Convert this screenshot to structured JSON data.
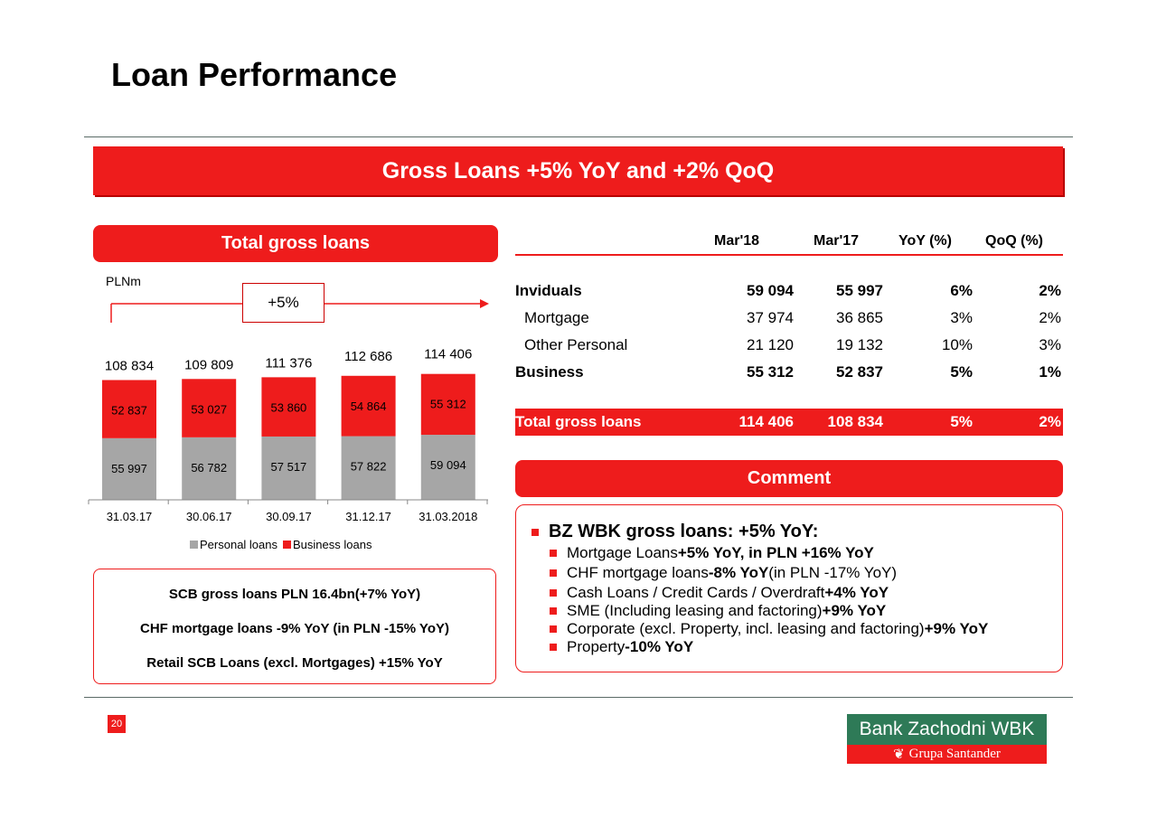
{
  "page_title": "Loan Performance",
  "banner": "Gross Loans +5% YoY and +2% QoQ",
  "left_panel": {
    "header": "Total gross loans",
    "unit": "PLNm",
    "growth_label": "+5%",
    "legend": [
      "Personal loans",
      "Business loans"
    ]
  },
  "chart_data": {
    "type": "bar",
    "stacked": true,
    "categories": [
      "31.03.17",
      "30.06.17",
      "30.09.17",
      "31.12.17",
      "31.03.2018"
    ],
    "series": [
      {
        "name": "Personal loans",
        "color": "#a6a6a6",
        "values": [
          55997,
          56782,
          57517,
          57822,
          59094
        ],
        "labels": [
          "55 997",
          "56 782",
          "57 517",
          "57 822",
          "59 094"
        ]
      },
      {
        "name": "Business loans",
        "color": "#ee1c1c",
        "values": [
          52837,
          53027,
          53860,
          54864,
          55312
        ],
        "labels": [
          "52 837",
          "53 027",
          "53 860",
          "54 864",
          "55 312"
        ]
      }
    ],
    "totals": [
      "108 834",
      "109 809",
      "111 376",
      "112 686",
      "114 406"
    ],
    "ylim": [
      0,
      115000
    ],
    "legend_position": "bottom",
    "grid": false
  },
  "info_box": {
    "line1": "SCB gross loans PLN 16.4bn(+7% YoY)",
    "line2": "CHF mortgage loans  -9% YoY (in PLN -15% YoY)",
    "line3": "Retail SCB Loans (excl. Mortgages) +15% YoY"
  },
  "table": {
    "columns": [
      "Mar'18",
      "Mar'17",
      "YoY (%)",
      "QoQ (%)"
    ],
    "rows": [
      {
        "label": "Inviduals",
        "values": [
          "59 094",
          "55 997",
          "6%",
          "2%"
        ]
      },
      {
        "label": "Mortgage",
        "values": [
          "37 974",
          "36 865",
          "3%",
          "2%"
        ]
      },
      {
        "label": "Other Personal",
        "values": [
          "21 120",
          "19 132",
          "10%",
          "3%"
        ]
      },
      {
        "label": "Business",
        "values": [
          "55 312",
          "52 837",
          "5%",
          "1%"
        ]
      },
      {
        "label": "Total gross loans",
        "values": [
          "114 406",
          "108 834",
          "5%",
          "2%"
        ]
      }
    ]
  },
  "comment": {
    "header": "Comment",
    "main": "BZ WBK gross loans:  +5% YoY:",
    "items": [
      {
        "pre": "Mortgage Loans ",
        "bold": "+5% YoY, in PLN +16% YoY",
        "post": ""
      },
      {
        "pre": "CHF mortgage loans ",
        "bold": "-8% YoY",
        "post": " (in PLN -17% YoY)"
      },
      {
        "pre": "Cash Loans / Credit Cards / Overdraft ",
        "bold": "+4% YoY",
        "post": ""
      },
      {
        "pre": "SME (Including leasing and factoring) ",
        "bold": "+9% YoY",
        "post": ""
      },
      {
        "pre": "Corporate (excl. Property, incl. leasing and factoring) ",
        "bold": "+9% YoY",
        "post": ""
      },
      {
        "pre": "Property ",
        "bold": "-10% YoY",
        "post": ""
      }
    ]
  },
  "footer": {
    "page_number": "20",
    "logo_top": "Bank Zachodni WBK",
    "logo_bottom": "Grupa Santander"
  },
  "colors": {
    "accent": "#ee1c1c",
    "grey": "#a6a6a6",
    "logo_green": "#2e7a57"
  }
}
